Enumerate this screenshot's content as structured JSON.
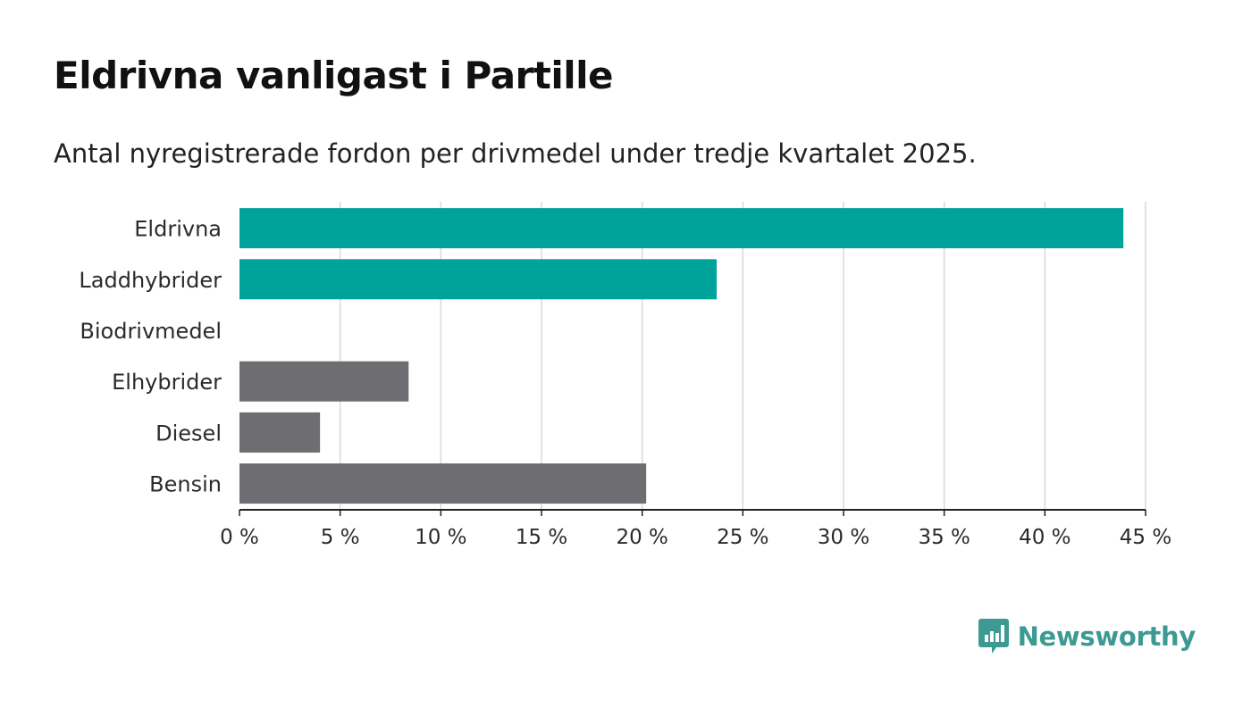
{
  "title": "Eldrivna vanligast i Partille",
  "subtitle": "Antal nyregistrerade fordon per drivmedel under tredje kvartalet 2025.",
  "brand": {
    "name": "Newsworthy",
    "color": "#3c9a93"
  },
  "colors": {
    "highlight": "#00a39a",
    "default": "#6e6d72",
    "grid": "#d9d9d9",
    "axis": "#222222"
  },
  "chart_data": {
    "type": "bar",
    "orientation": "horizontal",
    "categories": [
      "Eldrivna",
      "Laddhybrider",
      "Biodrivmedel",
      "Elhybrider",
      "Diesel",
      "Bensin"
    ],
    "values": [
      43.9,
      23.7,
      0,
      8.4,
      4.0,
      20.2
    ],
    "highlighted": [
      true,
      true,
      true,
      false,
      false,
      false
    ],
    "xlim": [
      0,
      45
    ],
    "xticks": [
      0,
      5,
      10,
      15,
      20,
      25,
      30,
      35,
      40,
      45
    ],
    "tick_suffix": " %",
    "grid": true,
    "xlabel": "",
    "ylabel": ""
  }
}
